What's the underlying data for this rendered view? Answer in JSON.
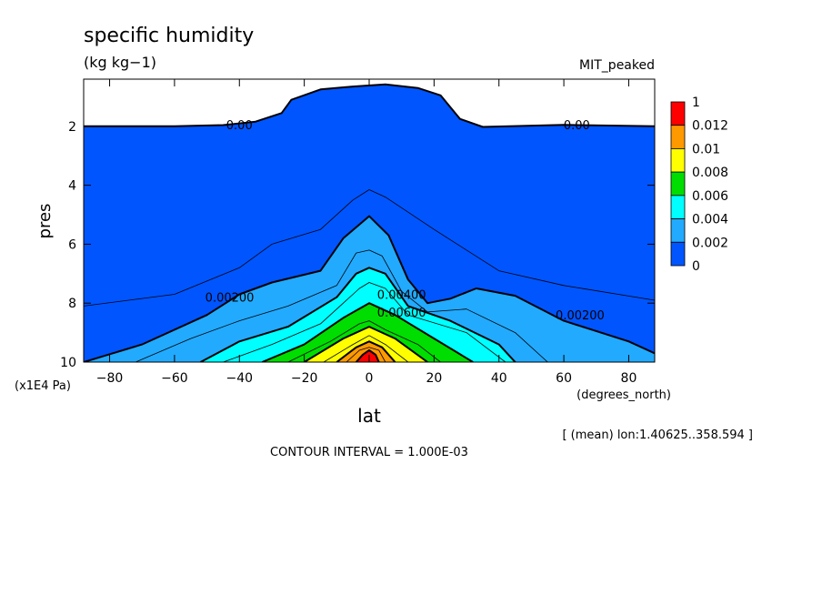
{
  "chart_data": {
    "type": "contour",
    "title": "specific humidity",
    "units": "(kg kg−1)",
    "experiment": "MIT_peaked",
    "xlabel": "lat",
    "x_units": "(degrees_north)",
    "ylabel": "pres",
    "y_units": "(x1E4 Pa)",
    "xlim": [
      -88,
      88
    ],
    "ylim": [
      0.4,
      10
    ],
    "y_inverted": true,
    "x_ticks": [
      -80,
      -60,
      -40,
      -20,
      0,
      20,
      40,
      60,
      80
    ],
    "y_ticks": [
      2,
      4,
      6,
      8,
      10
    ],
    "contour_interval_text": "CONTOUR INTERVAL = 1.000E-03",
    "mean_text": "[ (mean) lon:1.40625..358.594 ]",
    "colorbar": {
      "labels": [
        "1",
        "0.012",
        "0.01",
        "0.008",
        "0.006",
        "0.004",
        "0.002",
        "0"
      ],
      "colors": [
        "#ff0000",
        "#ff9900",
        "#ffff00",
        "#00dd00",
        "#00ffff",
        "#22aaff",
        "#0055ff"
      ]
    },
    "contour_labels": [
      {
        "text": "0.00",
        "lat": -40,
        "pres": 1.95
      },
      {
        "text": "0.00",
        "lat": 64,
        "pres": 1.95
      },
      {
        "text": "0.00200",
        "lat": -43,
        "pres": 7.8
      },
      {
        "text": "0.00200",
        "lat": 65,
        "pres": 8.4
      },
      {
        "text": "0.00400",
        "lat": 10,
        "pres": 7.7
      },
      {
        "text": "0.00600",
        "lat": 10,
        "pres": 8.3
      }
    ],
    "contours": [
      {
        "level": 0.0,
        "points": [
          [
            -88,
            2.0
          ],
          [
            -60,
            2.0
          ],
          [
            -45,
            1.96
          ],
          [
            -35,
            1.84
          ],
          [
            -27,
            1.55
          ],
          [
            -24,
            1.1
          ],
          [
            -15,
            0.75
          ],
          [
            -5,
            0.65
          ],
          [
            5,
            0.58
          ],
          [
            15,
            0.7
          ],
          [
            22,
            0.95
          ],
          [
            25,
            1.35
          ],
          [
            28,
            1.75
          ],
          [
            35,
            2.02
          ],
          [
            60,
            1.95
          ],
          [
            88,
            2.0
          ]
        ]
      },
      {
        "level": 0.001,
        "points": [
          [
            -88,
            8.1
          ],
          [
            -60,
            7.7
          ],
          [
            -40,
            6.8
          ],
          [
            -30,
            6.0
          ],
          [
            -15,
            5.5
          ],
          [
            -5,
            4.5
          ],
          [
            0,
            4.15
          ],
          [
            5,
            4.4
          ],
          [
            20,
            5.5
          ],
          [
            40,
            6.9
          ],
          [
            60,
            7.4
          ],
          [
            88,
            7.9
          ]
        ]
      },
      {
        "level": 0.002,
        "points": [
          [
            -88,
            10
          ],
          [
            -70,
            9.4
          ],
          [
            -50,
            8.4
          ],
          [
            -40,
            7.7
          ],
          [
            -30,
            7.3
          ],
          [
            -15,
            6.9
          ],
          [
            -8,
            5.8
          ],
          [
            0,
            5.05
          ],
          [
            6,
            5.7
          ],
          [
            12,
            7.2
          ],
          [
            18,
            8.0
          ],
          [
            25,
            7.85
          ],
          [
            33,
            7.5
          ],
          [
            45,
            7.75
          ],
          [
            60,
            8.6
          ],
          [
            80,
            9.3
          ],
          [
            88,
            9.7
          ]
        ]
      },
      {
        "level": 0.003,
        "points": [
          [
            -72,
            10
          ],
          [
            -55,
            9.2
          ],
          [
            -40,
            8.6
          ],
          [
            -25,
            8.1
          ],
          [
            -10,
            7.4
          ],
          [
            -4,
            6.3
          ],
          [
            0,
            6.2
          ],
          [
            4,
            6.4
          ],
          [
            10,
            7.6
          ],
          [
            18,
            8.3
          ],
          [
            30,
            8.2
          ],
          [
            45,
            9.0
          ],
          [
            55,
            10
          ]
        ]
      },
      {
        "level": 0.004,
        "points": [
          [
            -52,
            10
          ],
          [
            -40,
            9.3
          ],
          [
            -25,
            8.8
          ],
          [
            -10,
            7.8
          ],
          [
            -4,
            7.0
          ],
          [
            0,
            6.8
          ],
          [
            5,
            7.0
          ],
          [
            12,
            8.1
          ],
          [
            25,
            8.6
          ],
          [
            40,
            9.4
          ],
          [
            45,
            10
          ]
        ]
      },
      {
        "level": 0.005,
        "points": [
          [
            -45,
            10
          ],
          [
            -30,
            9.4
          ],
          [
            -15,
            8.7
          ],
          [
            -3,
            7.5
          ],
          [
            0,
            7.3
          ],
          [
            5,
            7.5
          ],
          [
            12,
            8.4
          ],
          [
            30,
            9.0
          ],
          [
            42,
            10
          ]
        ]
      },
      {
        "level": 0.006,
        "points": [
          [
            -33,
            10
          ],
          [
            -20,
            9.4
          ],
          [
            -8,
            8.5
          ],
          [
            0,
            8.0
          ],
          [
            8,
            8.4
          ],
          [
            20,
            9.2
          ],
          [
            32,
            10
          ]
        ]
      },
      {
        "level": 0.007,
        "points": [
          [
            -25,
            10
          ],
          [
            -12,
            9.3
          ],
          [
            -3,
            8.7
          ],
          [
            0,
            8.6
          ],
          [
            5,
            8.9
          ],
          [
            15,
            9.4
          ],
          [
            22,
            10
          ]
        ]
      },
      {
        "level": 0.008,
        "points": [
          [
            -20,
            10
          ],
          [
            -8,
            9.2
          ],
          [
            0,
            8.8
          ],
          [
            8,
            9.2
          ],
          [
            18,
            10
          ]
        ]
      },
      {
        "level": 0.009,
        "points": [
          [
            -14,
            10
          ],
          [
            -5,
            9.4
          ],
          [
            0,
            9.1
          ],
          [
            5,
            9.4
          ],
          [
            12,
            10
          ]
        ]
      },
      {
        "level": 0.01,
        "points": [
          [
            -10,
            10
          ],
          [
            -4,
            9.5
          ],
          [
            0,
            9.3
          ],
          [
            4,
            9.5
          ],
          [
            8,
            10
          ]
        ]
      },
      {
        "level": 0.011,
        "points": [
          [
            -7,
            10
          ],
          [
            -3,
            9.6
          ],
          [
            0,
            9.5
          ],
          [
            3,
            9.6
          ],
          [
            5,
            10
          ]
        ]
      },
      {
        "level": 0.012,
        "points": [
          [
            -4,
            10
          ],
          [
            -2,
            9.75
          ],
          [
            0,
            9.6
          ],
          [
            2,
            9.75
          ],
          [
            3,
            10
          ]
        ]
      }
    ]
  }
}
